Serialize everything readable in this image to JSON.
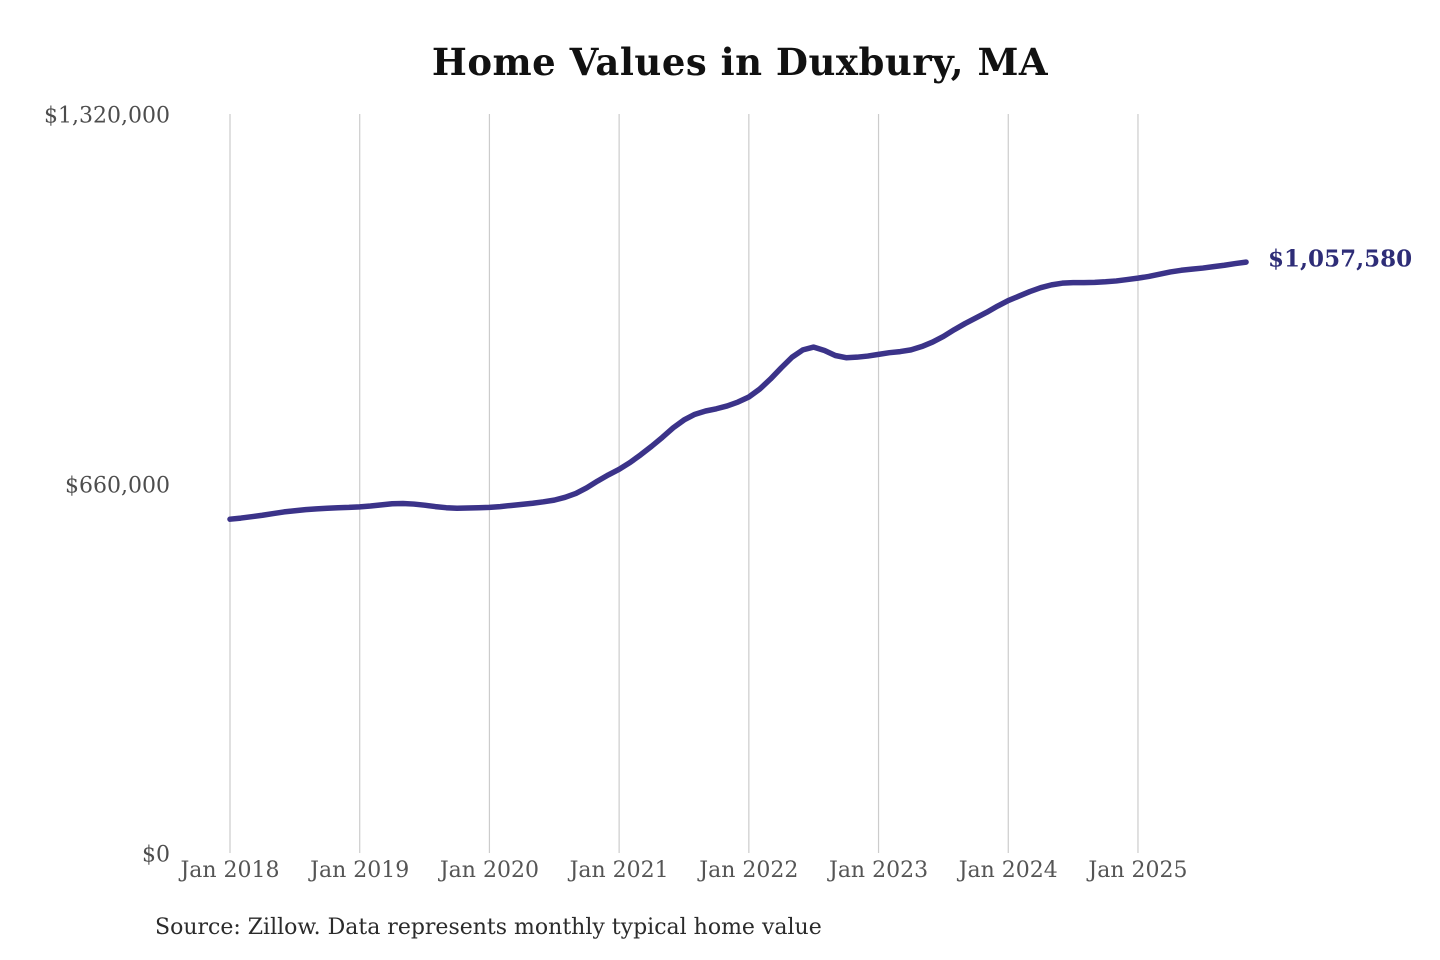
{
  "title": "Home Values in Duxbury, MA",
  "source_note": "Source: Zillow. Data represents monthly typical home value",
  "end_label": "$1,057,580",
  "colors": {
    "line": "#3b3389",
    "end_label": "#2e2d77",
    "grid": "#cccccc",
    "axis_text": "#555555",
    "title_text": "#111111",
    "source_text": "#2b2b2b",
    "background": "#ffffff"
  },
  "chart_data": {
    "type": "line",
    "title": "Home Values in Duxbury, MA",
    "xlabel": "",
    "ylabel": "",
    "ylim": [
      0,
      1320000
    ],
    "y_tick_labels": [
      "$0",
      "$660,000",
      "$1,320,000"
    ],
    "y_tick_values": [
      0,
      660000,
      1320000
    ],
    "x_tick_labels": [
      "Jan 2018",
      "Jan 2019",
      "Jan 2020",
      "Jan 2021",
      "Jan 2022",
      "Jan 2023",
      "Jan 2024",
      "Jan 2025"
    ],
    "grid": "vertical-only",
    "legend": "none",
    "x_monthly_start": "Jan 2018",
    "x_monthly_end": "Nov 2025",
    "end_value": 1057580,
    "series": [
      {
        "name": "Monthly typical home value",
        "values": [
          599000,
          601000,
          603500,
          606000,
          609000,
          612000,
          614000,
          616000,
          617500,
          618500,
          619500,
          620000,
          621000,
          622500,
          624500,
          626500,
          627000,
          626000,
          624000,
          621500,
          619500,
          618500,
          619000,
          619500,
          620000,
          621500,
          623500,
          625500,
          627500,
          630000,
          633000,
          638000,
          645000,
          655000,
          667000,
          678000,
          688000,
          700000,
          714000,
          729000,
          745000,
          762000,
          776000,
          786000,
          792000,
          796000,
          801000,
          808000,
          817000,
          831000,
          849000,
          869000,
          888000,
          901000,
          906000,
          900000,
          891000,
          887000,
          888000,
          890000,
          893000,
          896000,
          898000,
          901000,
          907000,
          915000,
          925000,
          937000,
          948000,
          958000,
          968000,
          979000,
          989000,
          997000,
          1005000,
          1012000,
          1017000,
          1020000,
          1021000,
          1021000,
          1021500,
          1022500,
          1024000,
          1026500,
          1029000,
          1032000,
          1036000,
          1040000,
          1043000,
          1045000,
          1047000,
          1049500,
          1052000,
          1055000,
          1057580
        ]
      }
    ]
  }
}
